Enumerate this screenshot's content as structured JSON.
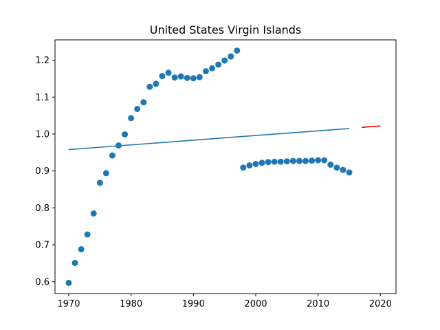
{
  "chart_data": {
    "type": "scatter",
    "title": "United States Virgin Islands",
    "xlabel": "",
    "ylabel": "",
    "xlim": [
      1967.8,
      2022.5
    ],
    "ylim": [
      0.568,
      1.255
    ],
    "xticks": [
      1970,
      1980,
      1990,
      2000,
      2010,
      2020
    ],
    "yticks": [
      0.6,
      0.7,
      0.8,
      0.9,
      1.0,
      1.1,
      1.2
    ],
    "grid": false,
    "colors": {
      "points": "#1f77b4",
      "fit_line": "#1f77b4",
      "forecast_line": "#ff0000"
    },
    "series": [
      {
        "type": "scatter",
        "points": [
          [
            1970,
            0.597
          ],
          [
            1971,
            0.651
          ],
          [
            1972,
            0.688
          ],
          [
            1973,
            0.728
          ],
          [
            1974,
            0.785
          ],
          [
            1975,
            0.868
          ],
          [
            1976,
            0.894
          ],
          [
            1977,
            0.942
          ],
          [
            1978,
            0.969
          ],
          [
            1979,
            0.999
          ],
          [
            1980,
            1.043
          ],
          [
            1981,
            1.068
          ],
          [
            1982,
            1.086
          ],
          [
            1983,
            1.128
          ],
          [
            1984,
            1.136
          ],
          [
            1985,
            1.157
          ],
          [
            1986,
            1.166
          ],
          [
            1987,
            1.153
          ],
          [
            1988,
            1.156
          ],
          [
            1989,
            1.152
          ],
          [
            1990,
            1.151
          ],
          [
            1991,
            1.154
          ],
          [
            1992,
            1.17
          ],
          [
            1993,
            1.178
          ],
          [
            1994,
            1.188
          ],
          [
            1995,
            1.199
          ],
          [
            1996,
            1.21
          ],
          [
            1997,
            1.226
          ],
          [
            1998,
            0.909
          ],
          [
            1999,
            0.915
          ],
          [
            2000,
            0.919
          ],
          [
            2001,
            0.922
          ],
          [
            2002,
            0.924
          ],
          [
            2003,
            0.925
          ],
          [
            2004,
            0.925
          ],
          [
            2005,
            0.926
          ],
          [
            2006,
            0.927
          ],
          [
            2007,
            0.927
          ],
          [
            2008,
            0.927
          ],
          [
            2009,
            0.928
          ],
          [
            2010,
            0.929
          ],
          [
            2011,
            0.929
          ],
          [
            2012,
            0.917
          ],
          [
            2013,
            0.909
          ],
          [
            2014,
            0.903
          ],
          [
            2015,
            0.896
          ]
        ]
      },
      {
        "type": "line",
        "color_key": "fit_line",
        "points": [
          [
            1970,
            0.958
          ],
          [
            2015,
            1.015
          ]
        ]
      },
      {
        "type": "line",
        "color_key": "forecast_line",
        "points": [
          [
            2017,
            1.018
          ],
          [
            2020,
            1.022
          ]
        ]
      }
    ]
  }
}
